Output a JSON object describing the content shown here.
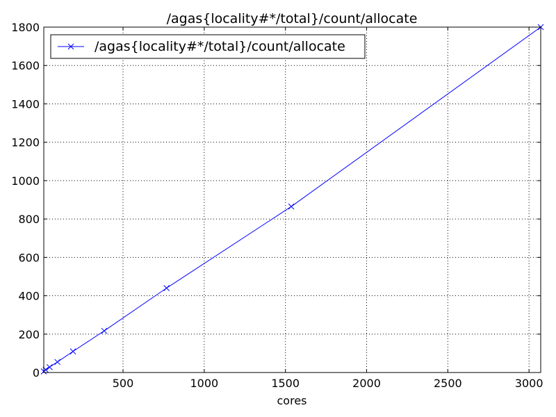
{
  "chart_data": {
    "type": "line",
    "title": "/agas{locality#*/total}/count/allocate",
    "xlabel": "cores",
    "ylabel": "",
    "xlim": [
      12,
      3072
    ],
    "ylim": [
      0,
      1800
    ],
    "x_ticks": [
      500,
      1000,
      1500,
      2000,
      2500,
      3000
    ],
    "y_ticks": [
      0,
      200,
      400,
      600,
      800,
      1000,
      1200,
      1400,
      1600,
      1800
    ],
    "grid": true,
    "legend_position": "top-left",
    "series": [
      {
        "name": "/agas{locality#*/total}/count/allocate",
        "color": "#0000ff",
        "marker": "x",
        "x": [
          12,
          24,
          48,
          96,
          192,
          384,
          768,
          1536,
          3072
        ],
        "y": [
          6,
          14,
          28,
          55,
          110,
          217,
          440,
          865,
          1800
        ]
      }
    ]
  }
}
